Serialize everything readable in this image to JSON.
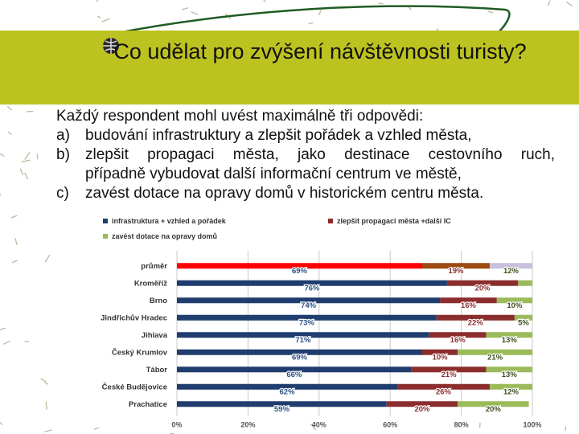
{
  "title": "Co udělat pro zvýšení návštěvnosti turisty?",
  "intro": "Každý respondent mohl uvést maximálně tři odpovědi:",
  "items": [
    {
      "marker": "a)",
      "text": "budování infrastruktury a zlepšit pořádek a vzhled města,"
    },
    {
      "marker": "b)",
      "text": "zlepšit propagaci města, jako destinace cestovního ruch,"
    },
    {
      "marker": "",
      "text": "případně vybudovat další informační centrum ve městě,"
    },
    {
      "marker": "c)",
      "text": "zavést dotace na opravy domů v historickém centru města."
    }
  ],
  "colors": {
    "band": "#bcc21f",
    "infra": "#1f3d6e",
    "prop": "#8c2d2d",
    "dot": "#9bbb59",
    "avg_infra": "#ff0000",
    "avg_prop": "#9c4a12",
    "avg_dot": "#c8c0dc"
  },
  "chart_data": {
    "type": "bar",
    "orientation": "horizontal",
    "stacked": true,
    "categories": [
      "průměr",
      "Kroměříž",
      "Brno",
      "Jindřichův Hradec",
      "Jihlava",
      "Český Krumlov",
      "Tábor",
      "České Budějovice",
      "Prachatice"
    ],
    "series": [
      {
        "name": "infrastruktura + vzhled a pořádek",
        "values": [
          69,
          76,
          74,
          73,
          71,
          69,
          66,
          62,
          59
        ],
        "labels": [
          "69%",
          "76%",
          "74%",
          "73%",
          "71%",
          "69%",
          "66%",
          "62%",
          "59%"
        ]
      },
      {
        "name": "zlepšit propagaci města +další IC",
        "values": [
          19,
          20,
          16,
          22,
          16,
          10,
          21,
          26,
          20
        ],
        "labels": [
          "19%",
          "20%",
          "16%",
          "22%",
          "16%",
          "10%",
          "21%",
          "26%",
          "20%"
        ]
      },
      {
        "name": "zavést dotace na opravy domů",
        "values": [
          12,
          4,
          10,
          5,
          13,
          21,
          13,
          12,
          20
        ],
        "labels": [
          "12%",
          "",
          "10%",
          "5%",
          "13%",
          "21%",
          "13%",
          "12%",
          "20%"
        ]
      }
    ],
    "xlim": [
      0,
      100
    ],
    "xticks": [
      "0%",
      "20%",
      "40%",
      "60%",
      "80%",
      "100%"
    ],
    "legend": "top",
    "grid": true
  }
}
